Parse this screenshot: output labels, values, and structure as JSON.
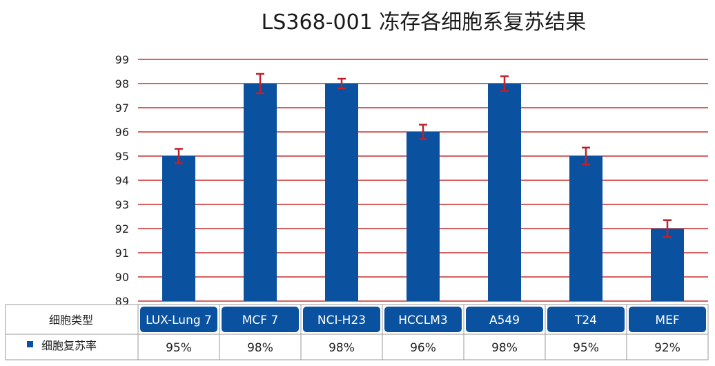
{
  "chart_data": {
    "type": "bar",
    "title": "LS368-001 冻存各细胞系复苏结果",
    "categories": [
      "LUX-Lung 7",
      "MCF 7",
      "NCI-H23",
      "HCCLM3",
      "A549",
      "T24",
      "MEF"
    ],
    "series": [
      {
        "name": "细胞复苏率",
        "values": [
          95,
          98,
          98,
          96,
          98,
          95,
          92
        ],
        "error": [
          0.3,
          0.4,
          0.2,
          0.3,
          0.3,
          0.35,
          0.35
        ],
        "color": "#0a52a0"
      }
    ],
    "ylim": [
      89,
      99
    ],
    "yticks": [
      "89",
      "90",
      "91",
      "92",
      "93",
      "94",
      "95",
      "96",
      "97",
      "98",
      "99"
    ],
    "grid": true,
    "gridline_color": "#c00000",
    "errorbar_color": "#c0202a",
    "table": {
      "header_label": "细胞类型",
      "row_label": "细胞复苏率",
      "row_values": [
        "95%",
        "98%",
        "98%",
        "96%",
        "98%",
        "95%",
        "92%"
      ]
    }
  }
}
